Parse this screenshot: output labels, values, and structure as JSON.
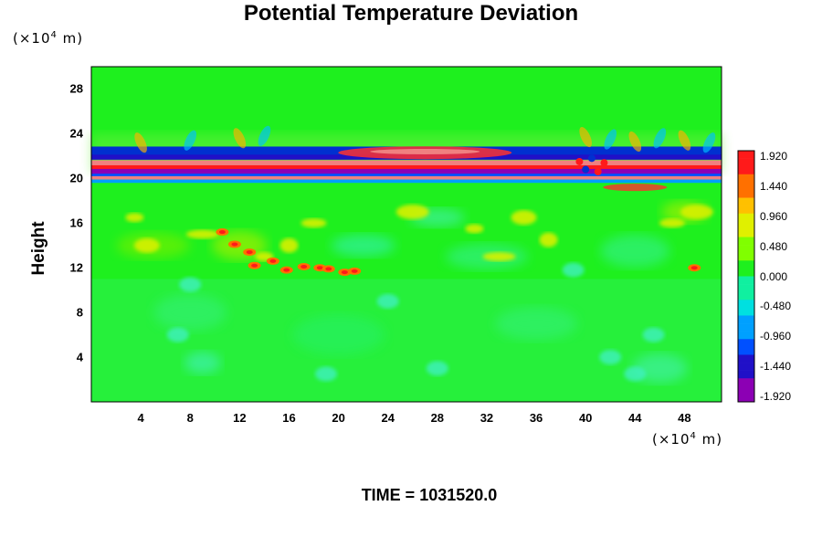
{
  "chart_data": {
    "type": "heatmap",
    "title": "Potential Temperature Deviation",
    "ylabel": "Height",
    "y_unit": "(×10",
    "x_unit": "(×10",
    "unit_exp": "4",
    "unit_tail": " m)",
    "x_ticks": [
      "4",
      "8",
      "12",
      "16",
      "20",
      "24",
      "28",
      "32",
      "36",
      "40",
      "44",
      "48"
    ],
    "y_ticks": [
      "4",
      "8",
      "12",
      "16",
      "20",
      "24",
      "28"
    ],
    "xlim": [
      0,
      51
    ],
    "ylim": [
      0,
      30
    ],
    "colorbar_ticks": [
      "1.920",
      "1.440",
      "0.960",
      "0.480",
      "0.000",
      "-0.480",
      "-0.960",
      "-1.440",
      "-1.920"
    ],
    "colorbar_range": [
      -1.92,
      1.92
    ],
    "time_label": "TIME = 1031520.0",
    "field_bands": [
      {
        "y_from": 19.5,
        "y_to": 23.0,
        "description": "strong alternating positive/negative layers"
      },
      {
        "y_from": 11.5,
        "y_to": 17.0,
        "description": "scattered positive anomalies"
      }
    ],
    "colors": {
      "background_field": "#1ef01e",
      "positive_max": "#f08080",
      "negative_max": "#8c00b4"
    }
  }
}
